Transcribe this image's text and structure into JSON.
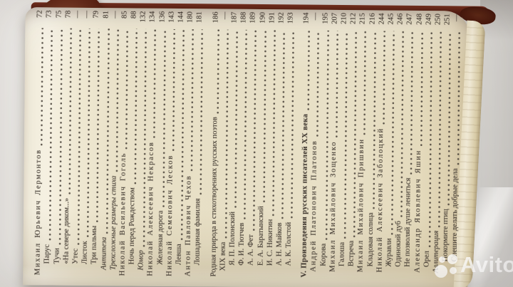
{
  "watermark": {
    "text": "Avito"
  },
  "colors": {
    "paper": "#e9e1c8",
    "text": "#403830",
    "cover": "#571d13",
    "cover-curl": "#7c3d26",
    "watermark": "rgba(255,255,255,0.8)"
  },
  "book": {
    "toc": {
      "entries": [
        {
          "title": "Михаил Юрьевич Лермонтов",
          "page": "72",
          "style": "author",
          "indent": 0
        },
        {
          "title": "Парус",
          "page": "73",
          "style": "work",
          "indent": 2
        },
        {
          "title": "Тучи",
          "page": "75",
          "style": "work",
          "indent": 2
        },
        {
          "title": "«На севере диком...»",
          "page": "78",
          "style": "work",
          "indent": 2
        },
        {
          "title": "Утес",
          "page": "—",
          "style": "work",
          "indent": 2
        },
        {
          "title": "Листок",
          "page": "—",
          "style": "work",
          "indent": 2
        },
        {
          "title": "Три пальмы",
          "page": "79",
          "style": "work",
          "indent": 2
        },
        {
          "title": "Антитеза",
          "page": "81",
          "style": "term",
          "indent": 1
        },
        {
          "title": "Трехсложные размеры стиха",
          "page": "—",
          "style": "term",
          "indent": 1
        },
        {
          "title": "Николай Васильевич Гоголь",
          "page": "85",
          "style": "author",
          "indent": 0
        },
        {
          "title": "Ночь перед Рождеством",
          "page": "88",
          "style": "work",
          "indent": 2
        },
        {
          "title": "Юмор",
          "page": "132",
          "style": "term",
          "indent": 1
        },
        {
          "title": "Николай Алексеевич Некрасов",
          "page": "134",
          "style": "author",
          "indent": 0
        },
        {
          "title": "Железная дорога",
          "page": "136",
          "style": "work",
          "indent": 2
        },
        {
          "title": "Николай Семенович Лесков",
          "page": "143",
          "style": "author",
          "indent": 0
        },
        {
          "title": "Левша",
          "page": "144",
          "style": "work",
          "indent": 2
        },
        {
          "title": "Антон Павлович Чехов",
          "page": "180",
          "style": "author",
          "indent": 0
        },
        {
          "title": "Лошадиная фамилия",
          "page": "181",
          "style": "work",
          "indent": 2
        },
        {
          "title": "Родная природа в стихотворениях русских поэтов",
          "page": "186",
          "style": "heading",
          "indent": 0,
          "gap": true
        },
        {
          "title": "XIX века",
          "page": "—",
          "style": "heading",
          "indent": 1
        },
        {
          "title": "Я. П. Полонский",
          "page": "187",
          "style": "work",
          "indent": 2
        },
        {
          "title": "Ф. И. Тютчев",
          "page": "188",
          "style": "work",
          "indent": 2
        },
        {
          "title": "А. А. Фет",
          "page": "189",
          "style": "work",
          "indent": 2
        },
        {
          "title": "Е. А. Баратынский",
          "page": "190",
          "style": "work",
          "indent": 2
        },
        {
          "title": "И. С. Никитин",
          "page": "191",
          "style": "work",
          "indent": 2
        },
        {
          "title": "А. Н. Майков",
          "page": "192",
          "style": "work",
          "indent": 2
        },
        {
          "title": "А. К. Толстой",
          "page": "193",
          "style": "work",
          "indent": 2
        },
        {
          "title": "V. Произведения русских писателей XX века",
          "page": "194",
          "style": "section",
          "indent": 0,
          "gap": true
        },
        {
          "title": "Андрей Платонович Платонов",
          "page": "—",
          "style": "author",
          "indent": 1
        },
        {
          "title": "Корова",
          "page": "195",
          "style": "work",
          "indent": 2
        },
        {
          "title": "Михаил Михайлович Зощенко",
          "page": "207",
          "style": "author",
          "indent": 1
        },
        {
          "title": "Галоша",
          "page": "210",
          "style": "work",
          "indent": 2
        },
        {
          "title": "Встреча",
          "page": "212",
          "style": "work",
          "indent": 2
        },
        {
          "title": "Михаил Михайлович Пришвин",
          "page": "215",
          "style": "author",
          "indent": 1
        },
        {
          "title": "Кладовая солнца",
          "page": "216",
          "style": "work",
          "indent": 2
        },
        {
          "title": "Николай Алексеевич Заболоцкий",
          "page": "244",
          "style": "author",
          "indent": 1
        },
        {
          "title": "Журавли",
          "page": "245",
          "style": "work",
          "indent": 2
        },
        {
          "title": "Одинокий дуб",
          "page": "246",
          "style": "work",
          "indent": 2
        },
        {
          "title": "Не позволяй душе лениться",
          "page": "247",
          "style": "work",
          "indent": 2
        },
        {
          "title": "Александр Яковлевич Яшин",
          "page": "248",
          "style": "author",
          "indent": 1
        },
        {
          "title": "Орел",
          "page": "249",
          "style": "work",
          "indent": 2
        },
        {
          "title": "Аллитерация",
          "page": "250",
          "style": "term",
          "indent": 1
        },
        {
          "title": "Покормите птиц",
          "page": "251",
          "style": "work",
          "indent": 3
        },
        {
          "title": "Спешите делать добрые дела",
          "page": "—",
          "style": "work",
          "indent": 3
        }
      ]
    }
  }
}
